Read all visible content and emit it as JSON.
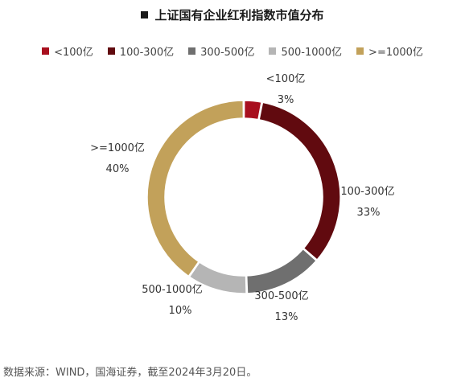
{
  "chart_data": {
    "type": "pie",
    "title": "上证国有企业红利指数市值分布",
    "categories": [
      "<100亿",
      "100-300亿",
      "300-500亿",
      "500-1000亿",
      ">=1000亿"
    ],
    "values": [
      3,
      33,
      13,
      10,
      40
    ],
    "value_labels": [
      "3%",
      "33%",
      "13%",
      "10%",
      "40%"
    ],
    "legend_labels": [
      "<100亿",
      "100-300亿",
      "300-500亿",
      "500-1000亿",
      ">=1000亿"
    ],
    "unit": "%",
    "legend_position": "top",
    "style": "donut"
  },
  "colors": [
    "#a80f1e",
    "#610a0f",
    "#6f6f6f",
    "#b5b5b5",
    "#c2a15a"
  ],
  "source": "数据来源：WIND，国海证券，截至2024年3月20日。"
}
